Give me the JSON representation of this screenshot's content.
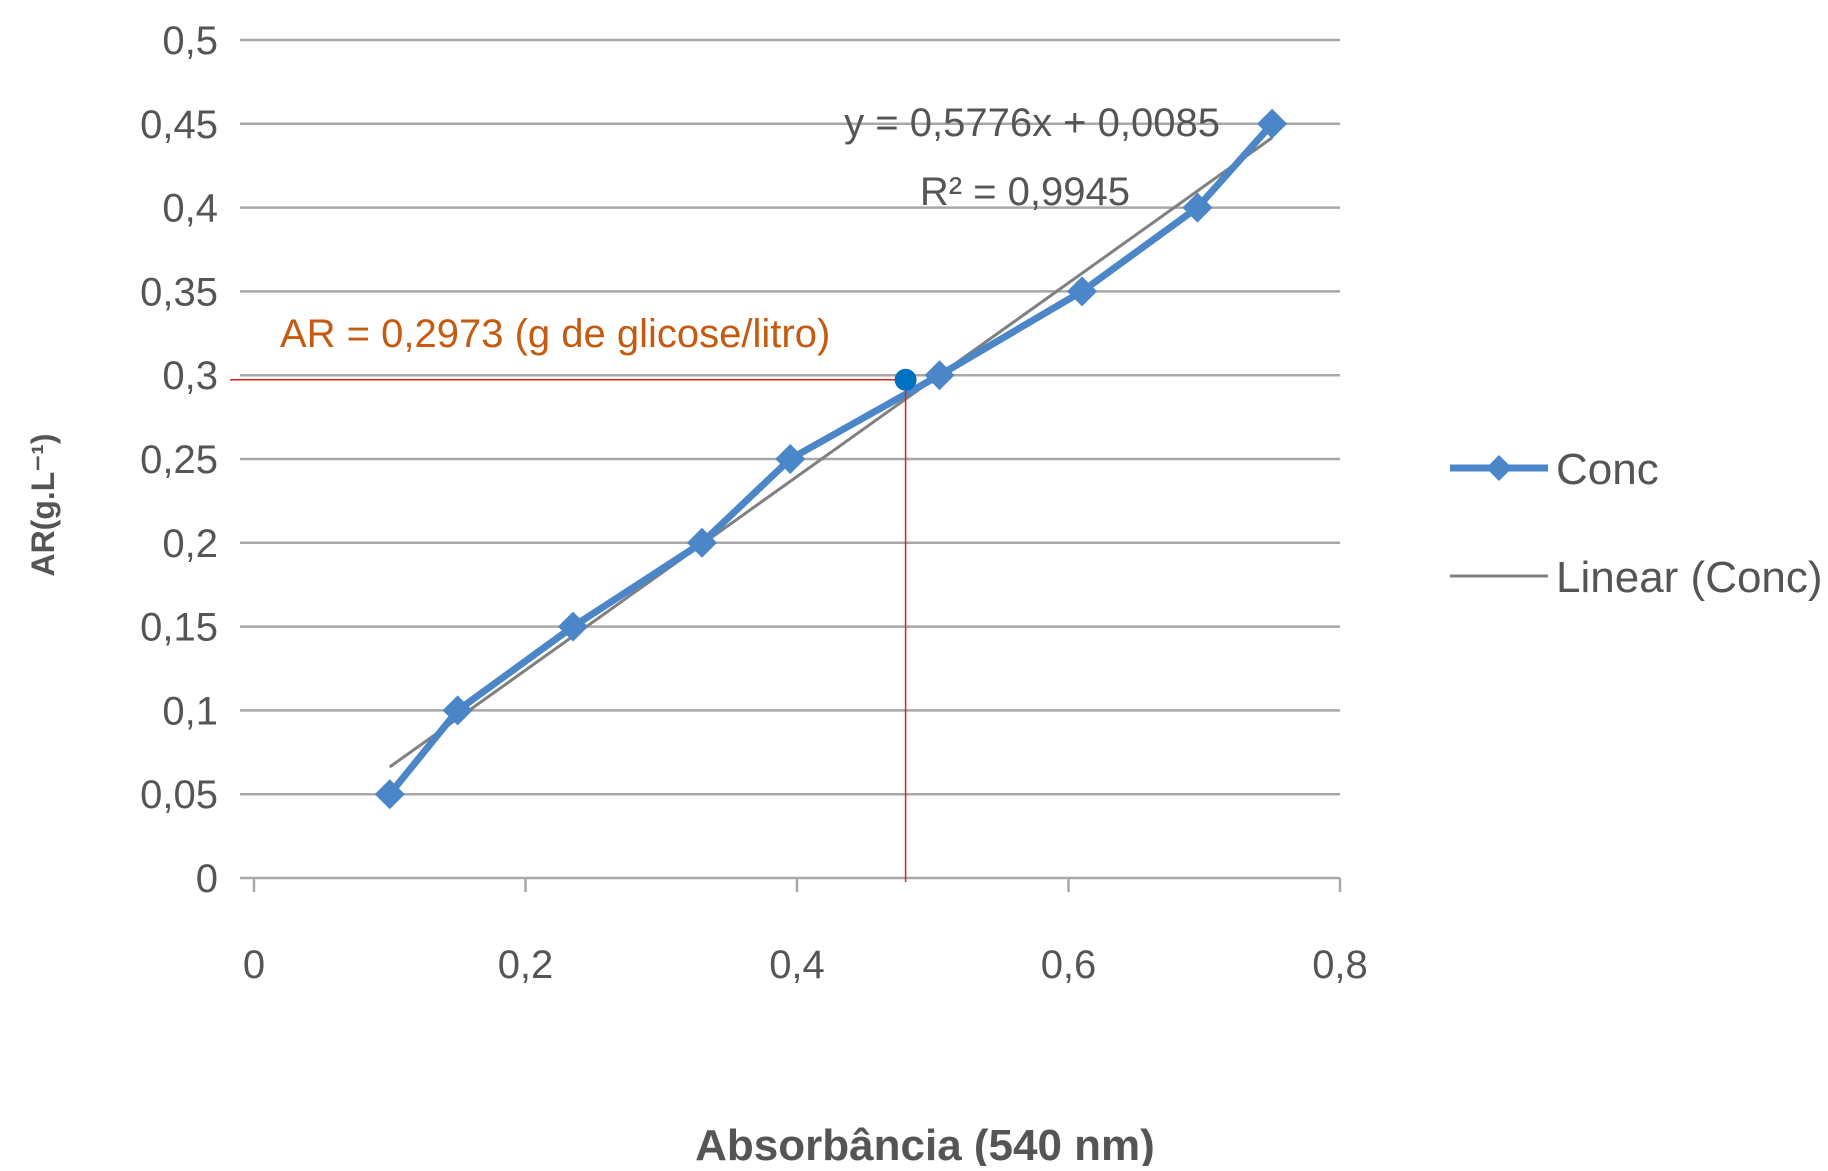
{
  "chart_data": {
    "type": "line",
    "xlabel": "Absorbância (540 nm)",
    "ylabel": "AR(g.L⁻¹)",
    "xlim": [
      0,
      0.8
    ],
    "ylim": [
      0,
      0.5
    ],
    "x_ticks": [
      "0",
      "0,2",
      "0,4",
      "0,6",
      "0,8"
    ],
    "y_ticks": [
      "0",
      "0,05",
      "0,1",
      "0,15",
      "0,2",
      "0,25",
      "0,3",
      "0,35",
      "0,4",
      "0,45",
      "0,5"
    ],
    "grid": "horizontal",
    "legend_position": "right",
    "series": [
      {
        "name": "Conc",
        "color": "#4a86c8",
        "marker": "diamond",
        "x": [
          0.1,
          0.15,
          0.235,
          0.33,
          0.395,
          0.505,
          0.61,
          0.695,
          0.75
        ],
        "y": [
          0.05,
          0.1,
          0.15,
          0.2,
          0.25,
          0.3,
          0.35,
          0.4,
          0.45
        ]
      },
      {
        "name": "Linear (Conc)",
        "color": "#808080",
        "type": "trendline",
        "slope": 0.5776,
        "intercept": 0.0085,
        "x_range": [
          0.1,
          0.75
        ]
      }
    ],
    "annotations": {
      "equation": "y = 0,5776x + 0,0085",
      "r_squared": "R² = 0,9945",
      "highlight_label": "AR = 0,2973 (g de glicose/litro)",
      "highlight_color": "#c55a11",
      "marker_color": "#0070c0",
      "guide_color": "#e0201a",
      "highlight_point": {
        "x": 0.48,
        "y": 0.2973
      }
    }
  }
}
